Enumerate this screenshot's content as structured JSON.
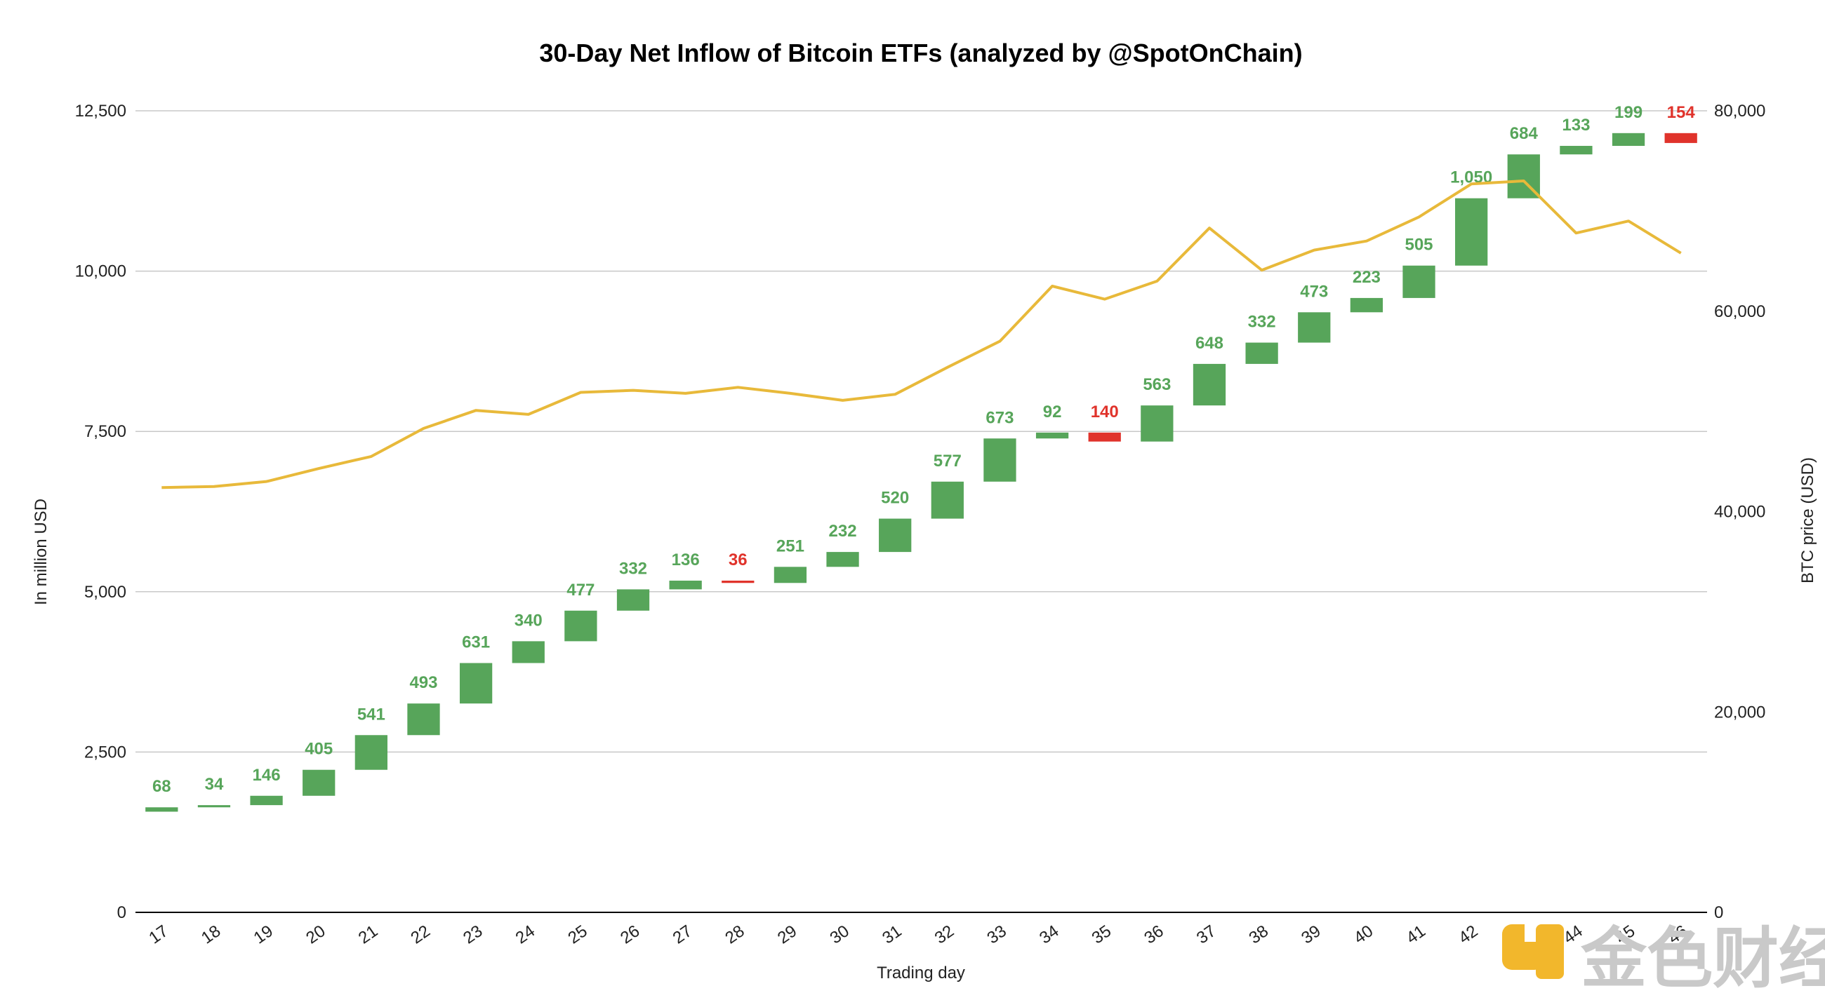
{
  "chart_data": {
    "type": "waterfall",
    "title": "30-Day Net Inflow of Bitcoin ETFs (analyzed by @SpotOnChain)",
    "xlabel": "Trading day",
    "ylabel": "In million USD",
    "y2label": "BTC price (USD)",
    "ylim": [
      0,
      12500
    ],
    "y2lim": [
      0,
      80000
    ],
    "yticks": [
      "0",
      "2,500",
      "5,000",
      "7,500",
      "10,000",
      "12,500"
    ],
    "y2ticks": [
      "0",
      "20,000",
      "40,000",
      "60,000",
      "80,000"
    ],
    "grid": true,
    "categories": [
      "17",
      "18",
      "19",
      "20",
      "21",
      "22",
      "23",
      "24",
      "25",
      "26",
      "27",
      "28",
      "29",
      "30",
      "31",
      "32",
      "33",
      "34",
      "35",
      "36",
      "37",
      "38",
      "39",
      "40",
      "41",
      "42",
      "43",
      "44",
      "45",
      "46"
    ],
    "flows": [
      68,
      34,
      146,
      405,
      541,
      493,
      631,
      340,
      477,
      332,
      136,
      -36,
      251,
      232,
      520,
      577,
      673,
      92,
      -140,
      563,
      648,
      332,
      473,
      223,
      505,
      1050,
      684,
      133,
      199,
      -154
    ],
    "flow_labels": [
      "68",
      "34",
      "146",
      "405",
      "541",
      "493",
      "631",
      "340",
      "477",
      "332",
      "136",
      "36",
      "251",
      "232",
      "520",
      "577",
      "673",
      "92",
      "140",
      "563",
      "648",
      "332",
      "473",
      "223",
      "505",
      "1,050",
      "684",
      "133",
      "199",
      "154"
    ],
    "start_cumulative": 1570,
    "btc_price": {
      "name": "BTC price (USD)",
      "values": [
        42400,
        42500,
        43000,
        44300,
        45500,
        48300,
        50100,
        49700,
        51900,
        52100,
        51800,
        52400,
        51800,
        51100,
        51700,
        54400,
        57000,
        62500,
        61200,
        63000,
        68300,
        64100,
        66100,
        67000,
        69400,
        72700,
        73000,
        67800,
        69000,
        65800
      ]
    },
    "colors": {
      "increase": "#57a55a",
      "decrease": "#e0332b",
      "line": "#e8b93a",
      "grid": "#c8c8c8",
      "axis": "#000000"
    }
  },
  "watermark": {
    "text": "金色财经"
  }
}
